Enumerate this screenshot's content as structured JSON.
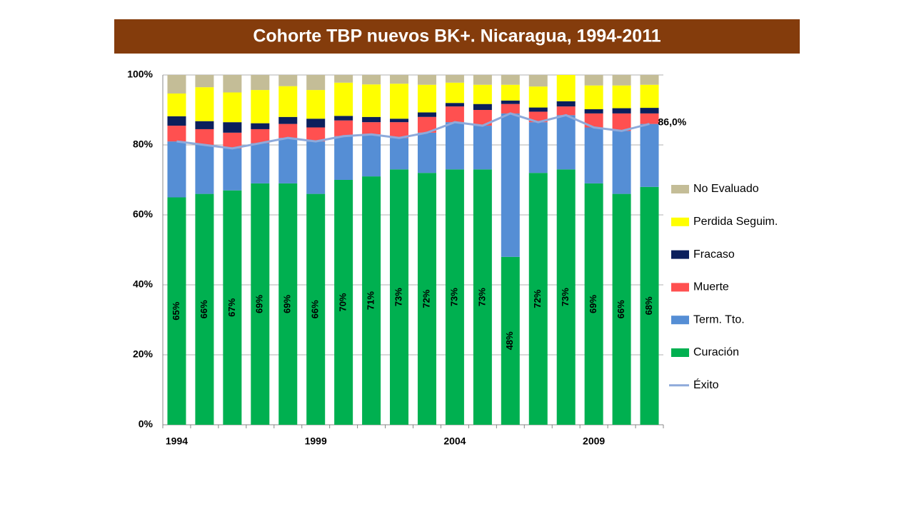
{
  "chart_data": {
    "type": "bar",
    "stacked": true,
    "title": "Cohorte TBP nuevos BK+. Nicaragua, 1994-2011",
    "categories": [
      "1994",
      null,
      null,
      null,
      null,
      "1999",
      null,
      null,
      null,
      null,
      "2004",
      null,
      null,
      null,
      null,
      "2009",
      null,
      null
    ],
    "series": [
      {
        "name": "Curación",
        "color": "#00b050",
        "values": [
          65,
          66,
          67,
          69,
          69,
          66,
          70,
          71,
          73,
          72,
          73,
          73,
          48,
          72,
          73,
          69,
          66,
          68
        ],
        "value_labels": [
          "65%",
          "66%",
          "67%",
          "69%",
          "69%",
          "66%",
          "70%",
          "71%",
          "73%",
          "72%",
          "73%",
          "73%",
          "48%",
          "72%",
          "73%",
          "69%",
          "66%",
          "68%"
        ]
      },
      {
        "name": "Term. Tto.",
        "color": "#558ed5",
        "values": [
          16,
          14,
          12,
          11.5,
          13,
          15,
          12.5,
          12,
          9,
          11.5,
          13.5,
          12.5,
          41,
          14.5,
          15.5,
          16,
          18,
          18
        ]
      },
      {
        "name": "Muerte",
        "color": "#ff5050",
        "values": [
          4.5,
          4.5,
          4.5,
          4,
          4,
          4,
          4.5,
          3.5,
          4.5,
          4.5,
          4.5,
          4.5,
          2.7,
          3,
          2.5,
          4,
          5,
          3
        ]
      },
      {
        "name": "Fracaso",
        "color": "#0b1f5c",
        "values": [
          2.7,
          2.3,
          3,
          1.7,
          2,
          2.5,
          1.3,
          1.5,
          1,
          1.3,
          1,
          1.7,
          1,
          1.2,
          1.5,
          1.2,
          1.5,
          1.6
        ]
      },
      {
        "name": "Perdida Seguim.",
        "color": "#ffff00",
        "values": [
          6.5,
          9.7,
          8.5,
          9.5,
          8.8,
          8.2,
          9.5,
          9.3,
          10,
          7.9,
          5.8,
          5.5,
          4.5,
          6,
          7.5,
          6.8,
          6.5,
          6.6
        ]
      },
      {
        "name": "No Evaluado",
        "color": "#c4bd97",
        "values": [
          5.3,
          3.5,
          5,
          4.3,
          3.2,
          4.3,
          2.2,
          2.7,
          2.5,
          2.8,
          2.2,
          2.8,
          2.8,
          3.3,
          0,
          3,
          3,
          2.8
        ]
      },
      {
        "name": "Éxito",
        "type": "line",
        "color": "#8eaadb",
        "values": [
          81,
          80,
          79,
          80.5,
          82,
          81,
          82.5,
          83,
          82,
          83.5,
          86.5,
          85.5,
          89,
          86.5,
          88.5,
          85,
          84,
          86
        ],
        "value_labels": [
          null,
          null,
          null,
          null,
          null,
          null,
          null,
          null,
          null,
          null,
          null,
          null,
          null,
          null,
          null,
          null,
          null,
          "86,0%"
        ]
      }
    ],
    "ylim": [
      0,
      100
    ],
    "yticks": [
      {
        "value": 0,
        "label": "0%"
      },
      {
        "value": 20,
        "label": "20%"
      },
      {
        "value": 40,
        "label": "40%"
      },
      {
        "value": 60,
        "label": "60%"
      },
      {
        "value": 80,
        "label": "80%"
      },
      {
        "value": 100,
        "label": "100%"
      }
    ],
    "grid": true,
    "legend": "right"
  }
}
